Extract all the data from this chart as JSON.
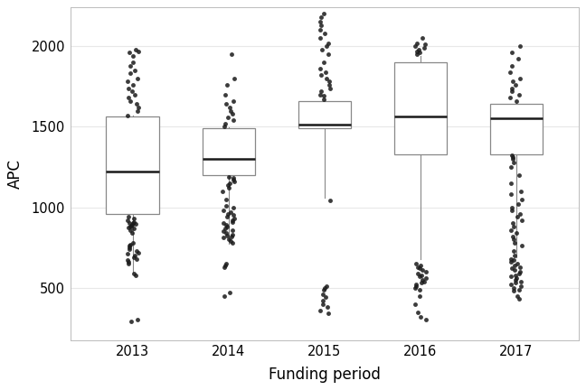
{
  "title": "",
  "xlabel": "Funding period",
  "ylabel": "APC",
  "years": [
    2013,
    2014,
    2015,
    2016,
    2017
  ],
  "box_stats": {
    "2013": {
      "median": 1220,
      "q1": 960,
      "q3": 1565,
      "whisker_low": 595,
      "whisker_high": 1568,
      "outliers": [
        290,
        300,
        580,
        590,
        650,
        660,
        670,
        680,
        690,
        700,
        710,
        720,
        730,
        740,
        750,
        760,
        770,
        780,
        840,
        860,
        870,
        875,
        880,
        885,
        890,
        895,
        900,
        905,
        910,
        920,
        930,
        940,
        1570,
        1600,
        1620,
        1640,
        1660,
        1680,
        1700,
        1720,
        1740,
        1760,
        1780,
        1800,
        1830,
        1850,
        1880,
        1900,
        1940,
        1960,
        1970,
        1980
      ]
    },
    "2014": {
      "median": 1300,
      "q1": 1200,
      "q3": 1490,
      "whisker_low": 775,
      "whisker_high": 1495,
      "outliers": [
        450,
        470,
        630,
        640,
        650,
        780,
        790,
        800,
        810,
        820,
        825,
        830,
        840,
        850,
        860,
        870,
        880,
        890,
        900,
        910,
        920,
        930,
        940,
        950,
        960,
        970,
        980,
        1000,
        1010,
        1050,
        1100,
        1120,
        1140,
        1150,
        1160,
        1170,
        1180,
        1190,
        1500,
        1520,
        1540,
        1560,
        1580,
        1600,
        1620,
        1640,
        1660,
        1700,
        1760,
        1800,
        1950
      ]
    },
    "2015": {
      "median": 1512,
      "q1": 1490,
      "q3": 1660,
      "whisker_low": 1060,
      "whisker_high": 1665,
      "outliers": [
        340,
        360,
        380,
        400,
        420,
        440,
        460,
        490,
        500,
        510,
        1040,
        1670,
        1690,
        1700,
        1720,
        1740,
        1760,
        1780,
        1800,
        1820,
        1840,
        1860,
        1900,
        1950,
        1980,
        2000,
        2020,
        2050,
        2080,
        2100,
        2130,
        2150,
        2180,
        2200
      ]
    },
    "2016": {
      "median": 1565,
      "q1": 1330,
      "q3": 1900,
      "whisker_low": 680,
      "whisker_high": 1940,
      "outliers": [
        300,
        320,
        350,
        400,
        450,
        490,
        500,
        510,
        520,
        530,
        540,
        550,
        560,
        570,
        580,
        590,
        600,
        610,
        620,
        630,
        640,
        650,
        1950,
        1960,
        1970,
        1980,
        1990,
        2000,
        2010,
        2020,
        2050
      ]
    },
    "2017": {
      "median": 1552,
      "q1": 1330,
      "q3": 1640,
      "whisker_low": 690,
      "whisker_high": 1650,
      "outliers": [
        430,
        450,
        480,
        490,
        500,
        510,
        520,
        530,
        540,
        550,
        560,
        570,
        580,
        590,
        600,
        610,
        620,
        630,
        640,
        650,
        660,
        670,
        680,
        700,
        730,
        760,
        780,
        800,
        820,
        840,
        860,
        880,
        900,
        920,
        940,
        960,
        980,
        1000,
        1020,
        1050,
        1080,
        1100,
        1150,
        1200,
        1250,
        1280,
        1300,
        1310,
        1320,
        1660,
        1680,
        1700,
        1720,
        1740,
        1760,
        1780,
        1800,
        1840,
        1880,
        1920,
        1960,
        2000
      ]
    }
  },
  "ylim": [
    175,
    2240
  ],
  "yticks": [
    500,
    1000,
    1500,
    2000
  ],
  "box_color": "white",
  "median_color": "#1a1a1a",
  "box_edge_color": "#888888",
  "whisker_color": "#888888",
  "outlier_color": "#1a1a1a",
  "outlier_size": 3.5,
  "background_color": "white",
  "grid_color": "#e8e8e8",
  "box_width": 0.55,
  "font_size": 10.5,
  "figsize": [
    6.48,
    4.32
  ],
  "dpi": 100
}
